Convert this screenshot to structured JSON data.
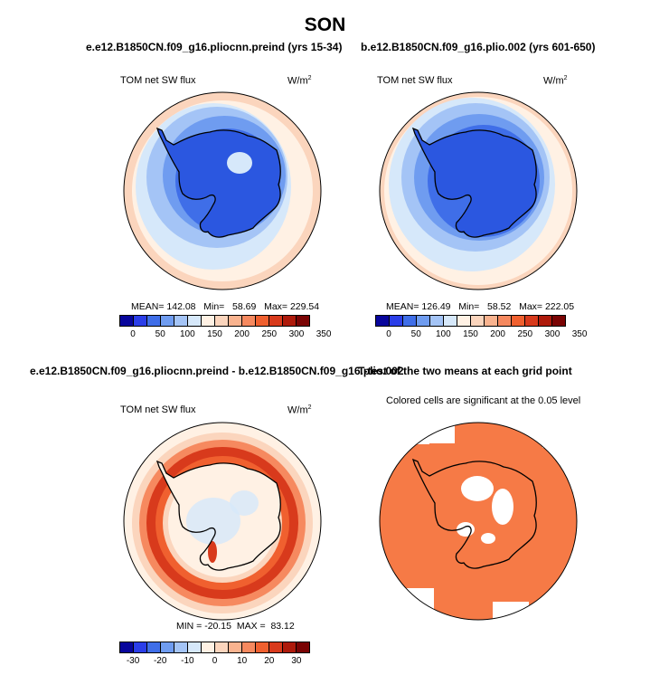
{
  "title": "SON",
  "panels": [
    {
      "id": "control",
      "title": "e.e12.B1850CN.f09_g16.pliocnn.preind (yrs 15-34)",
      "left_label": "TOM net SW flux",
      "units": "W/m",
      "units_exp": "2",
      "stats": "MEAN= 142.08   Min=   58.69   Max= 229.54"
    },
    {
      "id": "case",
      "title": "b.e12.B1850CN.f09_g16.plio.002 (yrs 601-650)",
      "left_label": "TOM net SW flux",
      "units": "W/m",
      "units_exp": "2",
      "stats": "MEAN= 126.49   Min=   58.52   Max= 222.05"
    },
    {
      "id": "difference",
      "title": "e.e12.B1850CN.f09_g16.pliocnn.preind - b.e12.B1850CN.f09_g16.plio.002",
      "left_label": "TOM net SW flux",
      "units": "W/m",
      "units_exp": "2",
      "stats": "MIN = -20.15  MAX =  83.12"
    },
    {
      "id": "ttest",
      "title": "T-test of the two means at each grid point",
      "note": "Colored cells are significant at the 0.05 level"
    }
  ],
  "colorbars": {
    "absolute": {
      "colors": [
        "#08069c",
        "#2b3ee8",
        "#3f6ee8",
        "#6f9cf0",
        "#a4c4f6",
        "#d6e8fa",
        "#fff1e4",
        "#fbd5bd",
        "#f9b38f",
        "#f6895f",
        "#f0602f",
        "#d83a1c",
        "#ae1a0b",
        "#7a0404"
      ],
      "tick_labels": [
        "0",
        "50",
        "100",
        "150",
        "200",
        "250",
        "300",
        "350"
      ]
    },
    "difference": {
      "colors": [
        "#08069c",
        "#2b3ee8",
        "#3f6ee8",
        "#6f9cf0",
        "#a4c4f6",
        "#d6e8fa",
        "#fff1e4",
        "#fbd5bd",
        "#f9b38f",
        "#f6895f",
        "#f0602f",
        "#d83a1c",
        "#ae1a0b",
        "#7a0404"
      ],
      "tick_labels": [
        "-30",
        "-20",
        "-10",
        "0",
        "10",
        "20",
        "30"
      ]
    }
  },
  "chart_data": [
    {
      "type": "heatmap",
      "projection": "south polar stereographic",
      "title": "e.e12.B1850CN.f09_g16.pliocnn.preind (yrs 15-34)",
      "field": "TOM net SW flux",
      "units": "W/m2",
      "mean": 142.08,
      "min": 58.69,
      "max": 229.54,
      "levels": [
        0,
        25,
        50,
        75,
        100,
        125,
        150,
        175,
        200,
        225,
        250,
        275,
        300,
        325,
        350
      ],
      "colorbar_ticks": [
        0,
        50,
        100,
        150,
        200,
        250,
        300,
        350
      ]
    },
    {
      "type": "heatmap",
      "projection": "south polar stereographic",
      "title": "b.e12.B1850CN.f09_g16.plio.002 (yrs 601-650)",
      "field": "TOM net SW flux",
      "units": "W/m2",
      "mean": 126.49,
      "min": 58.52,
      "max": 222.05,
      "levels": [
        0,
        25,
        50,
        75,
        100,
        125,
        150,
        175,
        200,
        225,
        250,
        275,
        300,
        325,
        350
      ],
      "colorbar_ticks": [
        0,
        50,
        100,
        150,
        200,
        250,
        300,
        350
      ]
    },
    {
      "type": "heatmap",
      "projection": "south polar stereographic",
      "title": "e.e12.B1850CN.f09_g16.pliocnn.preind - b.e12.B1850CN.f09_g16.plio.002",
      "field": "TOM net SW flux",
      "units": "W/m2",
      "min": -20.15,
      "max": 83.12,
      "colorbar_ticks": [
        -30,
        -20,
        -10,
        0,
        10,
        20,
        30
      ]
    },
    {
      "type": "heatmap",
      "projection": "south polar stereographic",
      "title": "T-test of the two means at each grid point",
      "note": "Colored cells are significant at the 0.05 level",
      "significance_level": 0.05,
      "colors": {
        "significant": "#f67a46",
        "not_significant": "#ffffff"
      }
    }
  ]
}
